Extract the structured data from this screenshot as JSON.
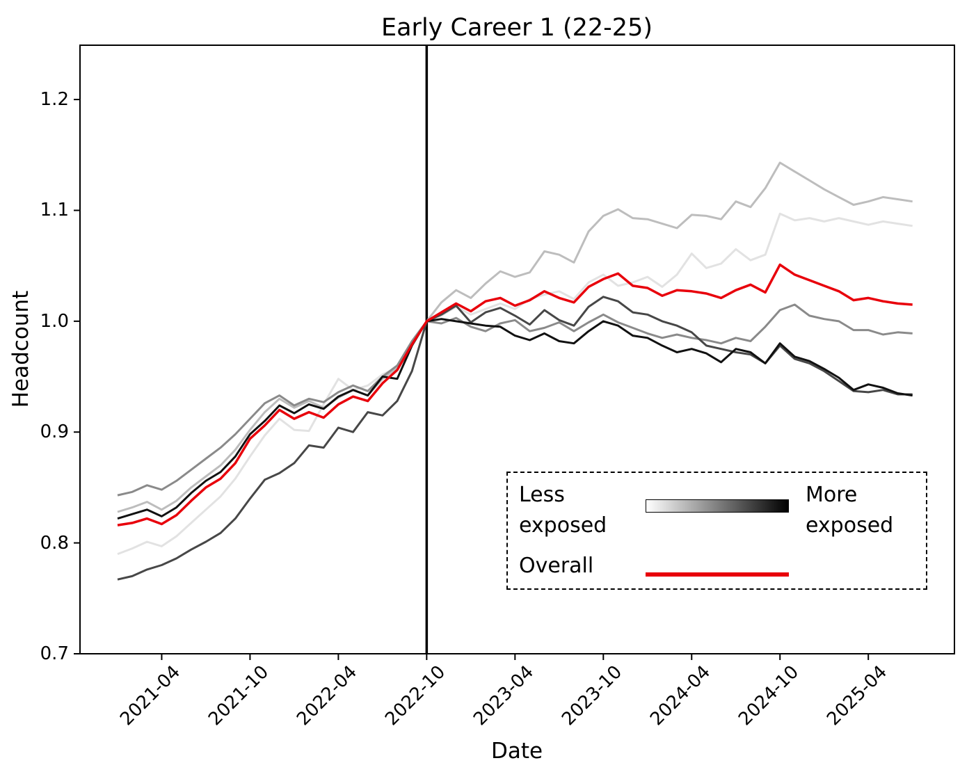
{
  "title": "Early Career 1 (22-25)",
  "axes": {
    "xlabel": "Date",
    "ylabel": "Headcount"
  },
  "legend": {
    "less_label": "Less exposed",
    "more_label": "More exposed",
    "overall_label": "Overall",
    "gradient_from": "#ffffff",
    "gradient_to": "#000000",
    "overall_color": "#e8000b"
  },
  "chart_data": {
    "type": "line",
    "title": "Early Career 1 (22-25)",
    "xlabel": "Date",
    "ylabel": "Headcount",
    "ylim": [
      0.7,
      1.249
    ],
    "grid": false,
    "legend_position": "lower right",
    "vline_month": "2022-10",
    "vline_color": "#000000",
    "yticks": [
      {
        "v": 0.7,
        "label": "0.7"
      },
      {
        "v": 0.8,
        "label": "0.8"
      },
      {
        "v": 0.9,
        "label": "0.9"
      },
      {
        "v": 1.0,
        "label": "1.0"
      },
      {
        "v": 1.1,
        "label": "1.1"
      },
      {
        "v": 1.2,
        "label": "1.2"
      }
    ],
    "xticks": [
      "2021-04",
      "2021-10",
      "2022-04",
      "2022-10",
      "2023-04",
      "2023-10",
      "2024-04",
      "2024-10",
      "2025-04"
    ],
    "x": [
      "2021-01",
      "2021-02",
      "2021-03",
      "2021-04",
      "2021-05",
      "2021-06",
      "2021-07",
      "2021-08",
      "2021-09",
      "2021-10",
      "2021-11",
      "2021-12",
      "2022-01",
      "2022-02",
      "2022-03",
      "2022-04",
      "2022-05",
      "2022-06",
      "2022-07",
      "2022-08",
      "2022-09",
      "2022-10",
      "2022-11",
      "2022-12",
      "2023-01",
      "2023-02",
      "2023-03",
      "2023-04",
      "2023-05",
      "2023-06",
      "2023-07",
      "2023-08",
      "2023-09",
      "2023-10",
      "2023-11",
      "2023-12",
      "2024-01",
      "2024-02",
      "2024-03",
      "2024-04",
      "2024-05",
      "2024-06",
      "2024-07",
      "2024-08",
      "2024-09",
      "2024-10",
      "2024-11",
      "2024-12",
      "2025-01",
      "2025-02",
      "2025-03",
      "2025-04",
      "2025-05",
      "2025-06",
      "2025-07"
    ],
    "series": [
      {
        "name": "quintile-1-least-exposed",
        "color": "#e2e2e2",
        "width": 3,
        "values": [
          0.79,
          0.795,
          0.801,
          0.797,
          0.806,
          0.818,
          0.83,
          0.842,
          0.858,
          0.878,
          0.897,
          0.912,
          0.902,
          0.901,
          0.925,
          0.948,
          0.938,
          0.942,
          0.952,
          0.958,
          0.98,
          1.0,
          1.005,
          1.013,
          1.006,
          1.011,
          1.016,
          1.011,
          1.02,
          1.024,
          1.027,
          1.02,
          1.035,
          1.042,
          1.032,
          1.035,
          1.04,
          1.031,
          1.042,
          1.061,
          1.048,
          1.052,
          1.065,
          1.055,
          1.06,
          1.097,
          1.091,
          1.093,
          1.09,
          1.093,
          1.09,
          1.087,
          1.09,
          1.088,
          1.086
        ]
      },
      {
        "name": "quintile-2",
        "color": "#bdbdbd",
        "width": 3,
        "values": [
          0.828,
          0.832,
          0.837,
          0.83,
          0.838,
          0.85,
          0.86,
          0.87,
          0.884,
          0.902,
          0.918,
          0.93,
          0.922,
          0.928,
          0.922,
          0.931,
          0.938,
          0.933,
          0.948,
          0.958,
          0.98,
          1.0,
          1.017,
          1.028,
          1.021,
          1.034,
          1.045,
          1.04,
          1.044,
          1.063,
          1.06,
          1.053,
          1.081,
          1.095,
          1.101,
          1.093,
          1.092,
          1.088,
          1.084,
          1.096,
          1.095,
          1.092,
          1.108,
          1.103,
          1.12,
          1.143,
          1.135,
          1.127,
          1.119,
          1.112,
          1.105,
          1.108,
          1.112,
          1.11,
          1.108
        ]
      },
      {
        "name": "quintile-3",
        "color": "#8a8a8a",
        "width": 3,
        "values": [
          0.843,
          0.846,
          0.852,
          0.848,
          0.856,
          0.866,
          0.876,
          0.886,
          0.898,
          0.912,
          0.926,
          0.933,
          0.924,
          0.93,
          0.927,
          0.936,
          0.942,
          0.937,
          0.95,
          0.96,
          0.982,
          1.0,
          0.998,
          1.003,
          0.995,
          0.991,
          0.998,
          1.001,
          0.991,
          0.994,
          0.999,
          0.991,
          0.999,
          1.006,
          0.999,
          0.994,
          0.989,
          0.985,
          0.988,
          0.985,
          0.983,
          0.98,
          0.985,
          0.982,
          0.995,
          1.01,
          1.015,
          1.005,
          1.002,
          1.0,
          0.992,
          0.992,
          0.988,
          0.99,
          0.989
        ]
      },
      {
        "name": "quintile-4",
        "color": "#474747",
        "width": 3,
        "values": [
          0.767,
          0.77,
          0.776,
          0.78,
          0.786,
          0.794,
          0.801,
          0.809,
          0.822,
          0.84,
          0.857,
          0.863,
          0.872,
          0.888,
          0.886,
          0.904,
          0.9,
          0.918,
          0.915,
          0.928,
          0.955,
          1.0,
          1.006,
          1.014,
          0.999,
          1.008,
          1.012,
          1.005,
          0.997,
          1.01,
          1.001,
          0.996,
          1.013,
          1.022,
          1.018,
          1.008,
          1.006,
          1.0,
          0.996,
          0.99,
          0.978,
          0.975,
          0.972,
          0.97,
          0.962,
          0.978,
          0.966,
          0.962,
          0.955,
          0.946,
          0.937,
          0.936,
          0.938,
          0.934,
          0.934
        ]
      },
      {
        "name": "quintile-5-most-exposed",
        "color": "#111111",
        "width": 3,
        "values": [
          0.822,
          0.826,
          0.83,
          0.824,
          0.832,
          0.845,
          0.856,
          0.864,
          0.878,
          0.898,
          0.91,
          0.924,
          0.917,
          0.925,
          0.921,
          0.932,
          0.938,
          0.933,
          0.95,
          0.948,
          0.978,
          1.0,
          1.002,
          1.0,
          0.998,
          0.996,
          0.995,
          0.987,
          0.983,
          0.989,
          0.982,
          0.98,
          0.991,
          1.0,
          0.996,
          0.987,
          0.985,
          0.978,
          0.972,
          0.975,
          0.971,
          0.963,
          0.975,
          0.972,
          0.962,
          0.98,
          0.968,
          0.964,
          0.957,
          0.949,
          0.938,
          0.943,
          0.94,
          0.935,
          0.933
        ]
      },
      {
        "name": "overall",
        "color": "#e8000b",
        "width": 3.5,
        "values": [
          0.816,
          0.818,
          0.822,
          0.817,
          0.825,
          0.838,
          0.85,
          0.858,
          0.872,
          0.894,
          0.906,
          0.92,
          0.912,
          0.918,
          0.913,
          0.925,
          0.932,
          0.928,
          0.944,
          0.956,
          0.979,
          1.0,
          1.008,
          1.016,
          1.009,
          1.018,
          1.021,
          1.014,
          1.019,
          1.027,
          1.021,
          1.017,
          1.031,
          1.038,
          1.043,
          1.032,
          1.03,
          1.023,
          1.028,
          1.027,
          1.025,
          1.021,
          1.028,
          1.033,
          1.026,
          1.051,
          1.042,
          1.037,
          1.032,
          1.027,
          1.019,
          1.021,
          1.018,
          1.016,
          1.015
        ]
      }
    ]
  }
}
